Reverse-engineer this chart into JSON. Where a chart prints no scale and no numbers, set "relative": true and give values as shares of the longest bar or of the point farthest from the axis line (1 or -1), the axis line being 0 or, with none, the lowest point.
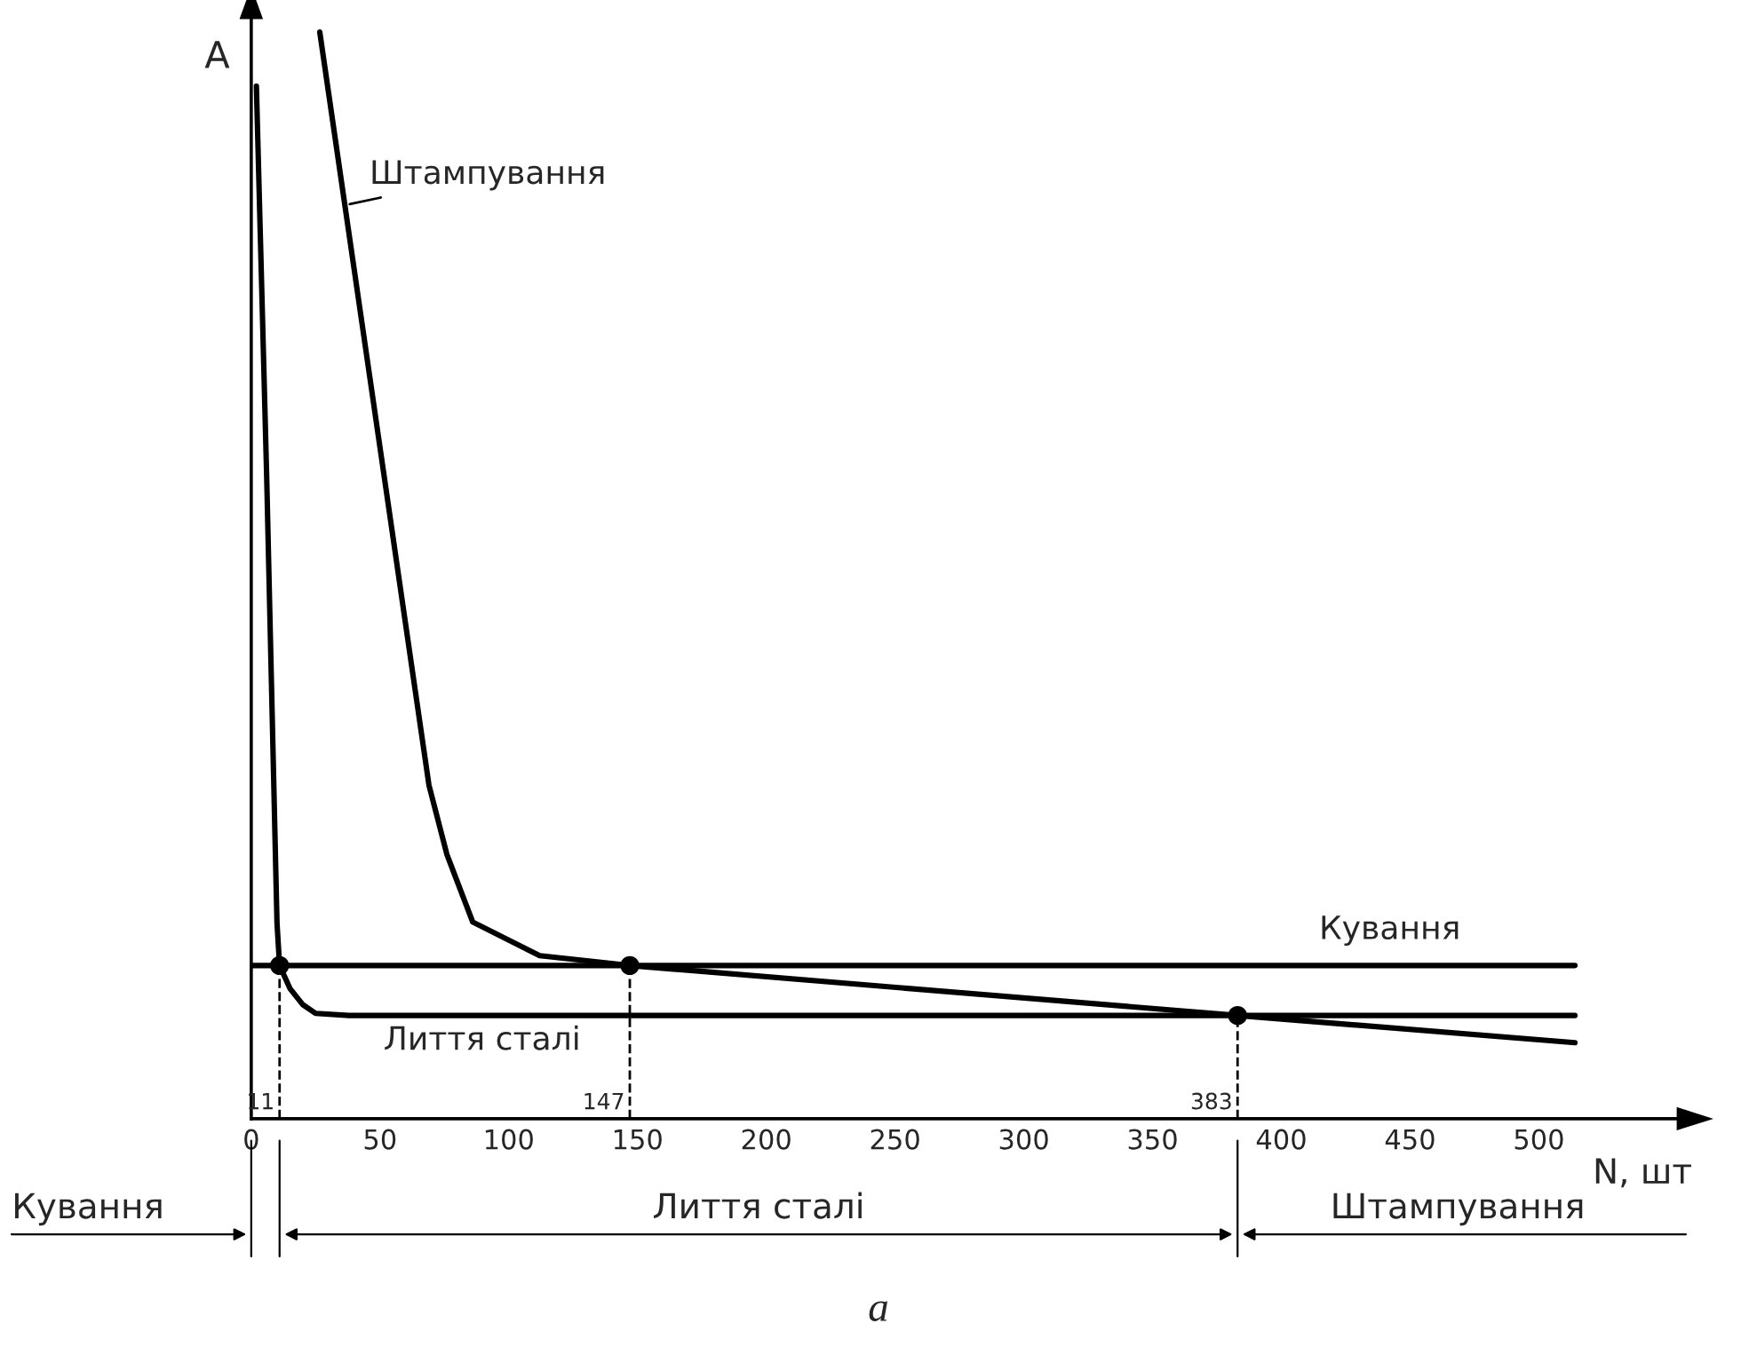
{
  "chart_data": {
    "type": "line",
    "relative": true,
    "xlabel": "N, шт",
    "ylabel": "A",
    "xlim": [
      0,
      554
    ],
    "xticks": [
      0,
      50,
      100,
      150,
      200,
      250,
      300,
      350,
      400,
      450,
      500
    ],
    "grid": false,
    "legend": false,
    "line_style": "solid",
    "series": [
      {
        "name": "Штампування",
        "color": "#000000",
        "x": [
          26.6,
          69,
          76,
          86,
          112,
          147,
          383,
          514
        ],
        "values": [
          1.0,
          0.307,
          0.243,
          0.181,
          0.15,
          0.141,
          0.095,
          0.07
        ]
      },
      {
        "name": "Лиття сталі",
        "color": "#000000",
        "x": [
          2,
          6,
          10,
          11,
          15,
          20,
          25,
          38,
          514
        ],
        "values": [
          0.95,
          0.59,
          0.18,
          0.141,
          0.12,
          0.105,
          0.097,
          0.095,
          0.095
        ]
      },
      {
        "name": "Кування",
        "color": "#000000",
        "x": [
          0,
          514
        ],
        "values": [
          0.141,
          0.141
        ]
      },
      {
        "type": "scatter",
        "marker": "circle",
        "color": "#000000",
        "x": [
          11,
          147,
          383
        ],
        "values": [
          0.141,
          0.141,
          0.095
        ]
      }
    ],
    "ref_lines": [
      {
        "axis": "x",
        "value": 11,
        "label": "11",
        "line_style": "dashed",
        "color": "#000000"
      },
      {
        "axis": "x",
        "value": 147,
        "label": "147",
        "line_style": "dashed",
        "color": "#000000"
      },
      {
        "axis": "x",
        "value": 383,
        "label": "383",
        "line_style": "dashed",
        "color": "#000000"
      }
    ],
    "annotations": [
      "Кування",
      "Лиття сталі",
      "Штампування",
      "a"
    ]
  }
}
